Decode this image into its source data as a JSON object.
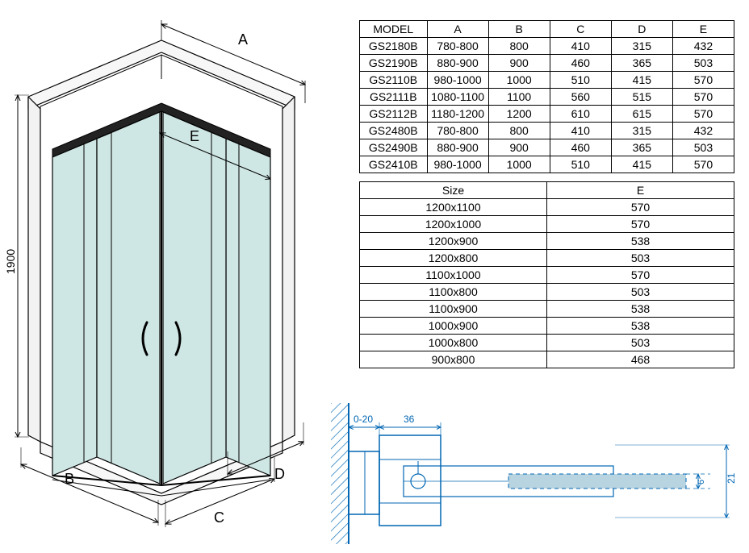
{
  "diagram": {
    "labels": {
      "A": "A",
      "B": "B",
      "C": "C",
      "D": "D",
      "E": "E",
      "height": "1900"
    },
    "colors": {
      "stroke": "#000000",
      "glass_fill": "#cfe7e4",
      "frame_fill": "#e0e0e0",
      "wall_fill": "#f0f0f0",
      "detail_stroke": "#0066b3",
      "detail_glass": "#b8d4e0"
    },
    "font_sizes": {
      "label": 16,
      "dim": 12
    }
  },
  "table1": {
    "columns": [
      "MODEL",
      "A",
      "B",
      "C",
      "D",
      "E"
    ],
    "rows": [
      [
        "GS2180B",
        "780-800",
        "800",
        "410",
        "315",
        "432"
      ],
      [
        "GS2190B",
        "880-900",
        "900",
        "460",
        "365",
        "503"
      ],
      [
        "GS2110B",
        "980-1000",
        "1000",
        "510",
        "415",
        "570"
      ],
      [
        "GS2111B",
        "1080-1100",
        "1100",
        "560",
        "515",
        "570"
      ],
      [
        "GS2112B",
        "1180-1200",
        "1200",
        "610",
        "615",
        "570"
      ],
      [
        "GS2480B",
        "780-800",
        "800",
        "410",
        "315",
        "432"
      ],
      [
        "GS2490B",
        "880-900",
        "900",
        "460",
        "365",
        "503"
      ],
      [
        "GS2410B",
        "980-1000",
        "1000",
        "510",
        "415",
        "570"
      ]
    ]
  },
  "table2": {
    "columns": [
      "Size",
      "E"
    ],
    "rows": [
      [
        "1200x1100",
        "570"
      ],
      [
        "1200x1000",
        "570"
      ],
      [
        "1200x900",
        "538"
      ],
      [
        "1200x800",
        "503"
      ],
      [
        "1100x1000",
        "570"
      ],
      [
        "1100x800",
        "503"
      ],
      [
        "1100x900",
        "538"
      ],
      [
        "1000x900",
        "538"
      ],
      [
        "1000x800",
        "503"
      ],
      [
        "900x800",
        "468"
      ]
    ]
  },
  "detail": {
    "dims": {
      "gap": "0-20",
      "depth": "36",
      "glass_h": "6",
      "total_h": "21"
    }
  }
}
